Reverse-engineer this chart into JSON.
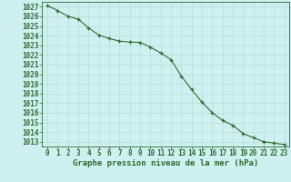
{
  "x": [
    0,
    1,
    2,
    3,
    4,
    5,
    6,
    7,
    8,
    9,
    10,
    11,
    12,
    13,
    14,
    15,
    16,
    17,
    18,
    19,
    20,
    21,
    22,
    23
  ],
  "y": [
    1027.1,
    1026.6,
    1026.0,
    1025.7,
    1024.8,
    1024.05,
    1023.7,
    1023.42,
    1023.33,
    1023.3,
    1022.8,
    1022.2,
    1021.5,
    1019.8,
    1018.4,
    1017.1,
    1016.0,
    1015.2,
    1014.7,
    1013.85,
    1013.4,
    1013.0,
    1012.85,
    1012.7
  ],
  "title": "Graphe pression niveau de la mer (hPa)",
  "bg_color": "#cff0f0",
  "grid_color": "#b8ddd8",
  "line_color": "#2d6b2d",
  "ylabel_ticks": [
    1013,
    1014,
    1015,
    1016,
    1017,
    1018,
    1019,
    1020,
    1021,
    1022,
    1023,
    1024,
    1025,
    1026,
    1027
  ],
  "ylim": [
    1012.5,
    1027.5
  ],
  "xlim": [
    -0.5,
    23.5
  ],
  "tick_fontsize": 5.5,
  "title_fontsize": 6.5
}
